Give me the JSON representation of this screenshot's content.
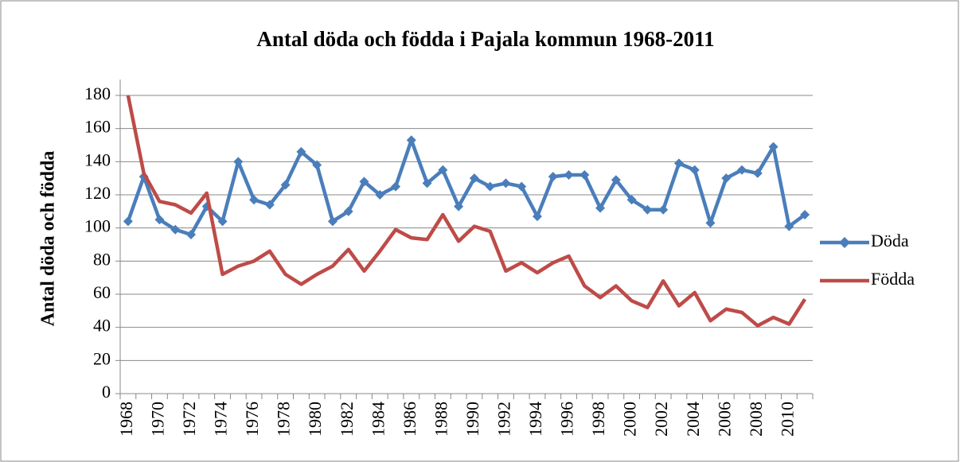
{
  "chart_data": {
    "type": "line",
    "title": "Antal döda och födda i Pajala kommun 1968-2011",
    "y_label": "Antal döda och födda",
    "categories": [
      "1968",
      null,
      "1970",
      null,
      "1972",
      null,
      "1974",
      null,
      "1976",
      null,
      "1978",
      null,
      "1980",
      null,
      "1982",
      null,
      "1984",
      null,
      "1986",
      null,
      "1988",
      null,
      "1990",
      null,
      "1992",
      null,
      "1994",
      null,
      "1996",
      null,
      "1998",
      null,
      "2000",
      null,
      "2002",
      null,
      "2004",
      null,
      "2006",
      null,
      "2008",
      null,
      "2010",
      null
    ],
    "series": [
      {
        "name": "Döda",
        "color": "#4a7ebb",
        "marker": "diamond",
        "values": [
          104,
          131,
          105,
          99,
          96,
          113,
          104,
          140,
          117,
          114,
          126,
          146,
          138,
          104,
          110,
          128,
          120,
          125,
          153,
          127,
          135,
          113,
          130,
          125,
          127,
          125,
          107,
          131,
          132,
          132,
          112,
          129,
          117,
          111,
          111,
          139,
          135,
          103,
          130,
          135,
          133,
          149,
          101,
          108
        ]
      },
      {
        "name": "Födda",
        "color": "#be4b48",
        "values": [
          180,
          133,
          116,
          114,
          109,
          121,
          72,
          77,
          80,
          86,
          72,
          66,
          72,
          77,
          87,
          74,
          86,
          99,
          94,
          93,
          108,
          92,
          101,
          98,
          74,
          79,
          73,
          79,
          83,
          65,
          58,
          65,
          56,
          52,
          68,
          53,
          61,
          44,
          51,
          49,
          41,
          46,
          42,
          57
        ]
      }
    ],
    "ylim": [
      0,
      180
    ],
    "yticks": [
      0,
      20,
      40,
      60,
      80,
      100,
      120,
      140,
      160,
      180
    ],
    "grid": true,
    "legend": "right"
  }
}
